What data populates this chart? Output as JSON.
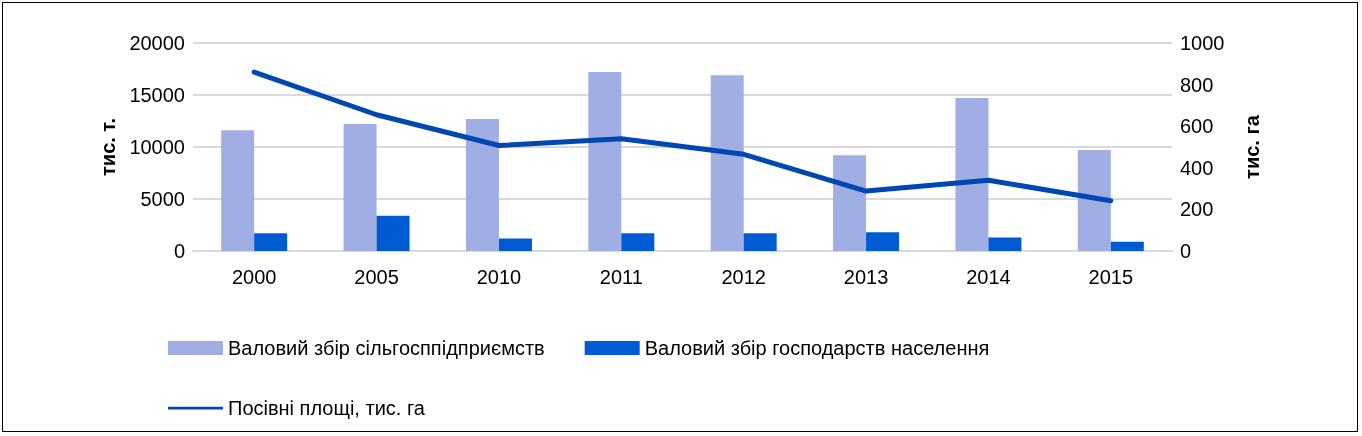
{
  "chart_data": {
    "type": "bar",
    "categories": [
      "2000",
      "2005",
      "2010",
      "2011",
      "2012",
      "2013",
      "2014",
      "2015"
    ],
    "ylabel": "тис. т.",
    "y2label": "тис. га",
    "series": [
      {
        "name": "Валовий збір сільгосппідприємств",
        "color": "#a0aee3",
        "values": [
          11600,
          12200,
          12700,
          17200,
          16900,
          9200,
          14700,
          9700
        ]
      },
      {
        "name": "Валовий збір господарств населення",
        "color": "#005bd3",
        "values": [
          1700,
          3400,
          1200,
          1700,
          1700,
          1800,
          1300,
          900
        ]
      },
      {
        "name": "Посівні площі, тис. га",
        "type": "line",
        "axis": "y2",
        "color": "#0047b3",
        "values": [
          860,
          655,
          507,
          540,
          465,
          288,
          340,
          242
        ]
      }
    ],
    "ylim": [
      0,
      20000
    ],
    "yticks": [
      0,
      5000,
      10000,
      15000,
      20000
    ],
    "y2lim": [
      0,
      1000
    ],
    "y2ticks": [
      0,
      200,
      400,
      600,
      800,
      1000
    ],
    "grid": "y",
    "legend": "bottom",
    "marker": "none",
    "line_style": "solid"
  }
}
